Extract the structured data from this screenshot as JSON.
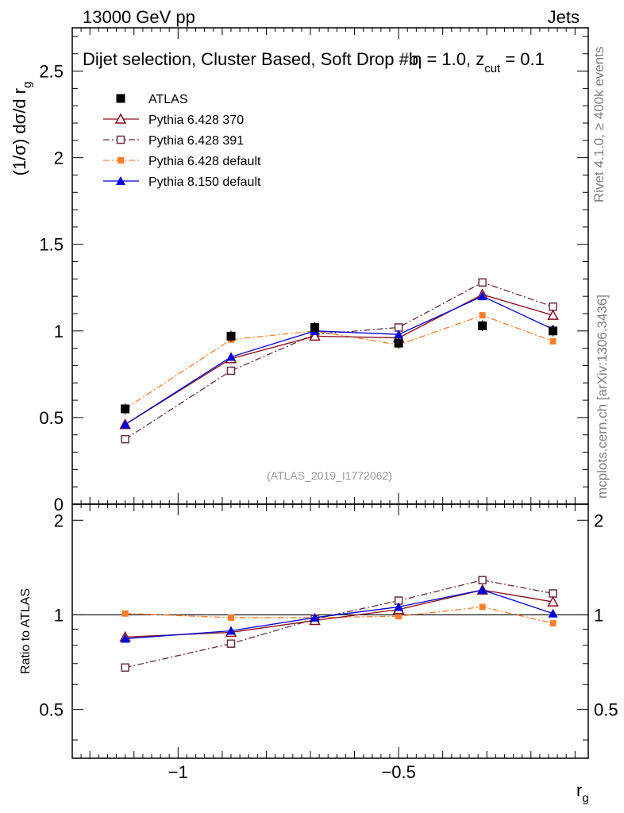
{
  "chart_data": {
    "type": "line",
    "energy_label": "13000 GeV pp",
    "process_label": "Jets",
    "title": "Dijet selection, Cluster Based, Soft Drop #b",
    "title_beta": "η = 1.0, z",
    "title_cut": "cut",
    "title_zvalue": " = 0.1",
    "ylabel": "(1/σ) dσ/d r",
    "ylabel_sub": "g",
    "xlabel": "r",
    "xlabel_sub": "g",
    "ratio_ylabel": "Ratio to ATLAS",
    "reference": "(ATLAS_2019_I1772062)",
    "rivet_label": "Rivet 4.1.0, ≥ 400k events",
    "mcplots_label": "mcplots.cern.ch [arXiv:1306.3436]",
    "xlim": [
      -1.24,
      -0.07
    ],
    "ylim": [
      0,
      2.75
    ],
    "ratio_ylim": [
      0.35,
      2.25
    ],
    "x_ticks": [
      -1,
      -0.5
    ],
    "x_tick_labels": [
      "−1",
      "−0.5"
    ],
    "y_ticks": [
      0,
      0.5,
      1,
      1.5,
      2,
      2.5
    ],
    "y_tick_labels": [
      "0",
      "0.5",
      "1",
      "1.5",
      "2",
      "2.5"
    ],
    "ratio_y_ticks": [
      0.5,
      1,
      2
    ],
    "ratio_y_tick_labels": [
      "0.5",
      "1",
      "2"
    ],
    "x": [
      -1.12,
      -0.88,
      -0.69,
      -0.5,
      -0.31,
      -0.15
    ],
    "series": [
      {
        "name": "ATLAS",
        "color": "#000000",
        "marker": "square-filled",
        "style": "none",
        "values": [
          0.55,
          0.97,
          1.02,
          0.93,
          1.03,
          1.0
        ]
      },
      {
        "name": "Pythia 6.428 370",
        "color": "#8b0a1a",
        "marker": "triangle-open",
        "style": "solid",
        "values": [
          0.46,
          0.84,
          0.97,
          0.96,
          1.21,
          1.09
        ]
      },
      {
        "name": "Pythia 6.428 391",
        "color": "#6b2d3f",
        "marker": "square-open",
        "style": "dashdot",
        "values": [
          0.375,
          0.77,
          0.98,
          1.02,
          1.28,
          1.14
        ]
      },
      {
        "name": "Pythia 6.428 default",
        "color": "#ff7f2a",
        "marker": "square-filled-small",
        "style": "dashdot",
        "values": [
          0.55,
          0.95,
          1.0,
          0.92,
          1.09,
          0.94
        ]
      },
      {
        "name": "Pythia 8.150 default",
        "color": "#0000dd",
        "marker": "triangle-filled",
        "style": "solid",
        "values": [
          0.46,
          0.85,
          1.0,
          0.98,
          1.2,
          1.01
        ]
      }
    ],
    "ratio_series": [
      {
        "name": "Pythia 6.428 370",
        "values": [
          0.85,
          0.88,
          0.96,
          1.04,
          1.2,
          1.1
        ]
      },
      {
        "name": "Pythia 6.428 391",
        "values": [
          0.68,
          0.81,
          0.97,
          1.11,
          1.29,
          1.17
        ]
      },
      {
        "name": "Pythia 6.428 default",
        "values": [
          1.01,
          0.98,
          0.98,
          0.99,
          1.06,
          0.94
        ]
      },
      {
        "name": "Pythia 8.150 default",
        "values": [
          0.84,
          0.89,
          0.98,
          1.06,
          1.2,
          1.01
        ]
      }
    ]
  }
}
